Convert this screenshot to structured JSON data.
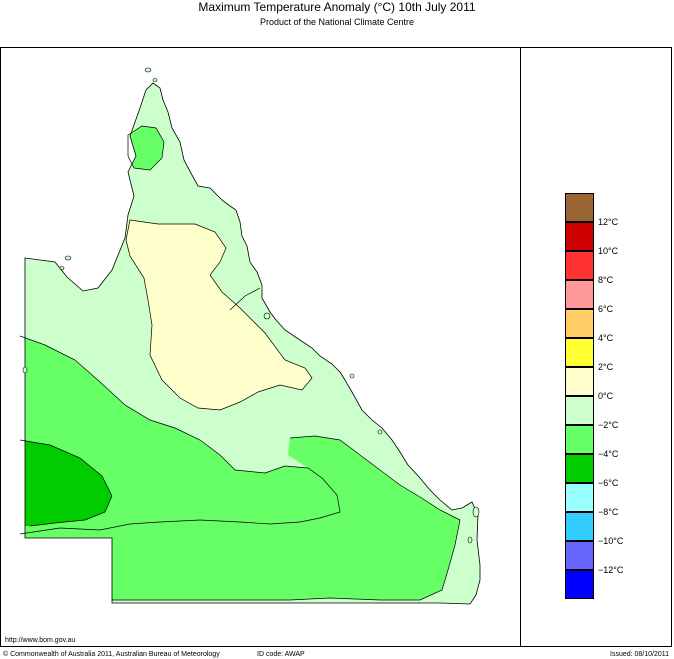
{
  "header": {
    "title": "Maximum Temperature Anomaly (°C)  10th July 2011",
    "subtitle": "Product of the National Climate Centre"
  },
  "legend": {
    "labels": [
      "12°C",
      "10°C",
      "8°C",
      "6°C",
      "4°C",
      "2°C",
      "0°C",
      "−2°C",
      "−4°C",
      "−6°C",
      "−8°C",
      "−10°C",
      "−12°C"
    ],
    "colors": [
      "#996633",
      "#cc0000",
      "#ff3333",
      "#ff9999",
      "#ffcc66",
      "#ffff33",
      "#ffffcc",
      "#ccffcc",
      "#66ff66",
      "#00cc00",
      "#99ffff",
      "#33ccff",
      "#6666ff",
      "#0000ff"
    ]
  },
  "map_colors": {
    "zero_to_two": "#ffffcc",
    "minus_two_to_zero": "#ccffcc",
    "minus_four_to_minus_two": "#66ff66",
    "minus_six_to_minus_four": "#00cc00"
  },
  "footer": {
    "url": "http://www.bom.gov.au",
    "copyright": "© Commonwealth of Australia 2011, Australian Bureau of Meteorology",
    "id_code": "ID code: AWAP",
    "issued": "Issued: 08/10/2011"
  }
}
